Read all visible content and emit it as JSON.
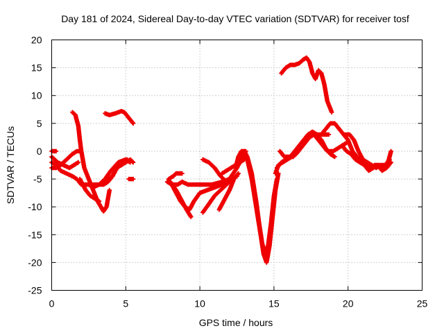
{
  "chart_data": {
    "type": "scatter",
    "title": "Day 181 of 2024, Sidereal Day-to-day VTEC variation (SDTVAR) for receiver tosf",
    "xlabel": "GPS time / hours",
    "ylabel": "SDTVAR / TECUs",
    "xlim": [
      0,
      25
    ],
    "ylim": [
      -25,
      20
    ],
    "xticks": [
      "0",
      "5",
      "10",
      "15",
      "20",
      "25"
    ],
    "yticks": [
      "-25",
      "-20",
      "-15",
      "-10",
      "-5",
      "0",
      "5",
      "10",
      "15",
      "20"
    ],
    "grid": true,
    "marker": "+",
    "color": "#ee0000",
    "series": [
      {
        "name": "track-01",
        "x": [
          0.0,
          0.3,
          0.6,
          1.0,
          1.4,
          1.7,
          2.0,
          2.3,
          2.8,
          3.5,
          3.8,
          4.1,
          4.4,
          4.8,
          5.1
        ],
        "y": [
          -2,
          -2.5,
          -3.5,
          -4,
          -4.5,
          -5,
          -6,
          -6,
          -6,
          -6,
          -5.5,
          -4.5,
          -3,
          -2,
          -1.5
        ]
      },
      {
        "name": "track-02",
        "x": [
          0.0,
          0.3,
          0.6,
          1.0,
          1.4,
          1.7,
          1.9
        ],
        "y": [
          -3,
          -3,
          -2.5,
          -1.5,
          -0.5,
          0,
          0
        ]
      },
      {
        "name": "track-03",
        "x": [
          0.0,
          0.4,
          0.8,
          1.2,
          1.5,
          1.8
        ],
        "y": [
          -1,
          -2,
          -2.5,
          -3,
          -2.5,
          -2
        ]
      },
      {
        "name": "track-04",
        "x": [
          0.0,
          0.3
        ],
        "y": [
          0,
          0
        ]
      },
      {
        "name": "track-05",
        "x": [
          1.4,
          1.6,
          1.8,
          1.9,
          2.0,
          2.2,
          2.5,
          2.8,
          3.1,
          3.5,
          3.7,
          3.9
        ],
        "y": [
          7,
          6.5,
          4.5,
          2,
          0,
          -3,
          -5,
          -7,
          -9,
          -10.8,
          -10,
          -7
        ]
      },
      {
        "name": "track-06",
        "x": [
          1.9,
          2.1,
          2.3,
          2.6,
          2.9,
          3.2
        ],
        "y": [
          -5,
          -6,
          -7,
          -8,
          -8.5,
          -9
        ]
      },
      {
        "name": "track-07",
        "x": [
          2.5,
          2.8,
          3.2,
          3.6,
          4.0,
          4.5,
          5.0,
          5.3
        ],
        "y": [
          -6,
          -6.5,
          -6,
          -5,
          -3.5,
          -2,
          -1.5,
          -2
        ]
      },
      {
        "name": "track-08",
        "x": [
          3.5,
          3.8,
          4.1,
          4.4,
          4.7,
          5.0,
          5.3,
          5.5
        ],
        "y": [
          -5.5,
          -5,
          -4.5,
          -3,
          -2.5,
          -2,
          -1.5,
          -2
        ]
      },
      {
        "name": "track-09",
        "x": [
          3.6,
          3.9,
          4.3,
          4.7,
          4.9,
          5.2,
          5.5
        ],
        "y": [
          6.8,
          6.5,
          6.8,
          7.2,
          7,
          6,
          5
        ]
      },
      {
        "name": "track-10",
        "x": [
          5.2,
          5.5
        ],
        "y": [
          -5,
          -5
        ]
      },
      {
        "name": "track-11",
        "x": [
          7.8,
          8.1,
          8.5,
          8.8,
          9.2,
          9.7,
          10.2,
          10.8,
          11.5,
          12.0
        ],
        "y": [
          -5.5,
          -6,
          -6,
          -5.5,
          -6,
          -6,
          -6,
          -6,
          -5.5,
          -5
        ]
      },
      {
        "name": "track-12",
        "x": [
          7.9,
          8.2,
          8.4,
          8.6,
          8.8
        ],
        "y": [
          -5,
          -4.5,
          -4,
          -4,
          -4
        ]
      },
      {
        "name": "track-13",
        "x": [
          7.9,
          8.1,
          8.4,
          8.7,
          9.0,
          9.3,
          9.6,
          10.0,
          10.5,
          11.0,
          11.5,
          12.0,
          12.5,
          12.8,
          13.1
        ],
        "y": [
          -5.2,
          -6,
          -7.5,
          -9,
          -10,
          -10.5,
          -9,
          -7.5,
          -7,
          -6.5,
          -6,
          -5,
          -3,
          -1.5,
          0
        ]
      },
      {
        "name": "track-14",
        "x": [
          8.0,
          8.4,
          8.8,
          9.1,
          9.4
        ],
        "y": [
          -5.5,
          -7,
          -9,
          -10.5,
          -11.8
        ]
      },
      {
        "name": "track-15",
        "x": [
          10.2,
          10.6,
          11.0,
          11.4,
          11.8,
          12.2,
          12.5
        ],
        "y": [
          -11,
          -9.5,
          -8,
          -7,
          -6,
          -5,
          -4.5
        ]
      },
      {
        "name": "track-16",
        "x": [
          10.2,
          10.6,
          11.0,
          11.4,
          11.8
        ],
        "y": [
          -1.5,
          -2,
          -3,
          -4.5,
          -5.5
        ]
      },
      {
        "name": "track-17",
        "x": [
          11.3,
          11.6,
          12.0,
          12.3,
          12.6
        ],
        "y": [
          -10.5,
          -9,
          -7,
          -5,
          -4
        ]
      },
      {
        "name": "track-18",
        "x": [
          11.5,
          11.8,
          12.1,
          12.4,
          12.7,
          13.0
        ],
        "y": [
          -4,
          -3.5,
          -3,
          -2.5,
          -2,
          -1.5
        ]
      },
      {
        "name": "track-19",
        "x": [
          12.4,
          12.6,
          12.8,
          13.0,
          13.2,
          13.5,
          13.8,
          14.1,
          14.3,
          14.5,
          14.7,
          14.9,
          15.1,
          15.3
        ],
        "y": [
          -3,
          -1,
          0,
          0,
          -1.5,
          -5,
          -10,
          -15,
          -18.5,
          -20,
          -17,
          -12,
          -7,
          -4
        ]
      },
      {
        "name": "track-20",
        "x": [
          12.8,
          13.0,
          13.2,
          13.5,
          13.8,
          14.0,
          14.2,
          14.4,
          14.6,
          14.8,
          15.0,
          15.2
        ],
        "y": [
          -1,
          0,
          -1,
          -4,
          -9,
          -13,
          -16.5,
          -18.5,
          -17,
          -13,
          -8,
          -5
        ]
      },
      {
        "name": "track-21",
        "x": [
          15.1,
          15.3,
          15.6,
          15.9,
          16.2,
          16.5,
          16.8,
          17.1,
          17.4,
          17.7,
          18.0,
          18.3,
          18.6,
          19.0,
          19.3,
          19.6,
          19.9
        ],
        "y": [
          -4,
          -2.5,
          -2,
          -1.5,
          -1,
          -0.5,
          0.5,
          1.5,
          2.5,
          3,
          2,
          1,
          0,
          0,
          0.5,
          1,
          1.5
        ]
      },
      {
        "name": "track-22",
        "x": [
          15.2,
          15.5,
          15.8,
          16.1,
          16.4,
          16.7,
          17.0,
          17.3,
          17.6,
          17.9,
          18.2,
          18.5,
          18.8,
          19.1
        ],
        "y": [
          -3,
          -2,
          -1.5,
          -1,
          0,
          1,
          2,
          3,
          3.5,
          3,
          2,
          0.5,
          -0.5,
          -1
        ]
      },
      {
        "name": "track-23",
        "x": [
          15.4,
          15.7,
          16.0,
          16.3,
          16.6,
          16.9,
          17.2,
          17.5,
          17.8,
          18.1,
          18.4,
          18.7
        ],
        "y": [
          0,
          -1,
          -1,
          -1,
          0,
          1,
          2,
          3,
          3,
          3,
          3,
          3
        ]
      },
      {
        "name": "track-24",
        "x": [
          15.5,
          15.8,
          16.1,
          16.4,
          16.7,
          17.0,
          17.2,
          17.4,
          17.6,
          17.8,
          18.0,
          18.2,
          18.4,
          18.6,
          18.9
        ],
        "y": [
          14,
          15,
          15.5,
          15.5,
          15.8,
          16.5,
          16.8,
          16,
          14,
          13,
          14.5,
          14,
          12,
          9,
          7
        ]
      },
      {
        "name": "track-25",
        "x": [
          18.2,
          18.5,
          18.8,
          19.1,
          19.4,
          19.7,
          20.0,
          20.3,
          20.6,
          20.9,
          21.2,
          21.5,
          21.8,
          22.1,
          22.4,
          22.7,
          22.9
        ],
        "y": [
          3,
          4,
          5,
          5,
          4,
          3,
          2,
          0,
          -1,
          -2,
          -2.5,
          -3,
          -2.5,
          -2.5,
          -3,
          -2,
          0
        ]
      },
      {
        "name": "track-26",
        "x": [
          19.6,
          19.9,
          20.2,
          20.5,
          20.8,
          21.1,
          21.4,
          21.7,
          22.0,
          22.3,
          22.6,
          22.9
        ],
        "y": [
          1,
          0,
          -0.5,
          -1.5,
          -2,
          -2.5,
          -3.5,
          -3,
          -2.5,
          -3.5,
          -3,
          -2
        ]
      },
      {
        "name": "track-27",
        "x": [
          19.8,
          20.1,
          20.4,
          20.7,
          21.0,
          21.3,
          21.6,
          21.9,
          22.2,
          22.5,
          22.8
        ],
        "y": [
          3,
          3,
          2,
          0,
          -1.5,
          -2,
          -2.5,
          -3,
          -2.5,
          -2.5,
          -1.5
        ]
      }
    ]
  }
}
